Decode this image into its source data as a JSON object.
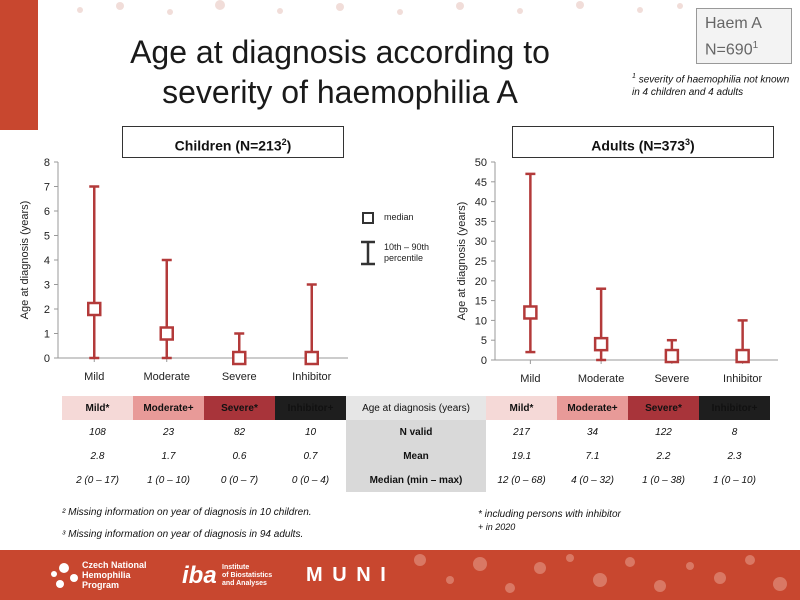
{
  "title_line1": "Age at diagnosis according to",
  "title_line2": "severity of haemophilia A",
  "haem_box": {
    "line1": "Haem A",
    "line2": "N=690",
    "sup": "1"
  },
  "note1": "severity of haemophilia not known in 4 children and 4 adults",
  "note1_sup": "1",
  "children_label": "Children (N=213",
  "children_sup": "2",
  "adults_label": "Adults (N=373",
  "adults_sup": "3",
  "legend": {
    "median": "median",
    "range_line1": "10th – 90th",
    "range_line2": "percentile"
  },
  "chart_data": [
    {
      "type": "range",
      "name": "Children",
      "categories": [
        "Mild",
        "Moderate",
        "Severe",
        "Inhibitor"
      ],
      "median": [
        2,
        1,
        0,
        0
      ],
      "low": [
        0,
        0,
        0,
        0
      ],
      "high": [
        7,
        4,
        1,
        3
      ],
      "ylabel": "Age at diagnosis (years)",
      "ylim": [
        0,
        8
      ],
      "yticks": [
        0,
        1,
        2,
        3,
        4,
        5,
        6,
        7,
        8
      ]
    },
    {
      "type": "range",
      "name": "Adults",
      "categories": [
        "Mild",
        "Moderate",
        "Severe",
        "Inhibitor"
      ],
      "median": [
        12,
        4,
        1,
        1
      ],
      "low": [
        2,
        0,
        0,
        0
      ],
      "high": [
        47,
        18,
        5,
        10
      ],
      "ylabel": "Age at diagnosis (years)",
      "ylim": [
        0,
        50
      ],
      "yticks": [
        0,
        5,
        10,
        15,
        20,
        25,
        30,
        35,
        40,
        45,
        50
      ]
    }
  ],
  "table": {
    "headers_left": [
      "Mild*",
      "Moderate+",
      "Severe*",
      "Inhibitor+"
    ],
    "headers_left_marks": [
      "",
      "",
      "",
      ""
    ],
    "middle_header": "Age at diagnosis (years)",
    "headers_right": [
      "Mild*",
      "Moderate+",
      "Severe*",
      "Inhibitor+"
    ],
    "rows": [
      {
        "label": "N valid",
        "left": [
          "108",
          "23",
          "82",
          "10"
        ],
        "right": [
          "217",
          "34",
          "122",
          "8"
        ]
      },
      {
        "label": "Mean",
        "left": [
          "2.8",
          "1.7",
          "0.6",
          "0.7"
        ],
        "right": [
          "19.1",
          "7.1",
          "2.2",
          "2.3"
        ]
      },
      {
        "label": "Median (min – max)",
        "left": [
          "2 (0 – 17)",
          "1 (0 – 10)",
          "0 (0 – 7)",
          "0 (0 – 4)"
        ],
        "right": [
          "12 (0 – 68)",
          "4 (0 – 32)",
          "1 (0 – 38)",
          "1 (0 – 10)"
        ]
      }
    ]
  },
  "footnotes": {
    "fn2": "² Missing information on year of diagnosis in 10 children.",
    "fn3": "³ Missing information on year of diagnosis in 94 adults.",
    "star": "* including persons with inhibitor",
    "plus": "+ in 2020"
  },
  "footer": {
    "cnhp_line1": "Czech National",
    "cnhp_line2": "Hemophilia",
    "cnhp_line3": "Program",
    "iba": "iba",
    "iba_sub1": "Institute",
    "iba_sub2": "of Biostatistics",
    "iba_sub3": "and Analyses",
    "muni": "M U N I"
  },
  "colors": {
    "accent": "#c8472f",
    "marker": "#b33a3a",
    "mild": "#f5d9d7",
    "moderate": "#e89a98",
    "severe": "#a8343a",
    "inhibitor": "#1e1e1e"
  }
}
